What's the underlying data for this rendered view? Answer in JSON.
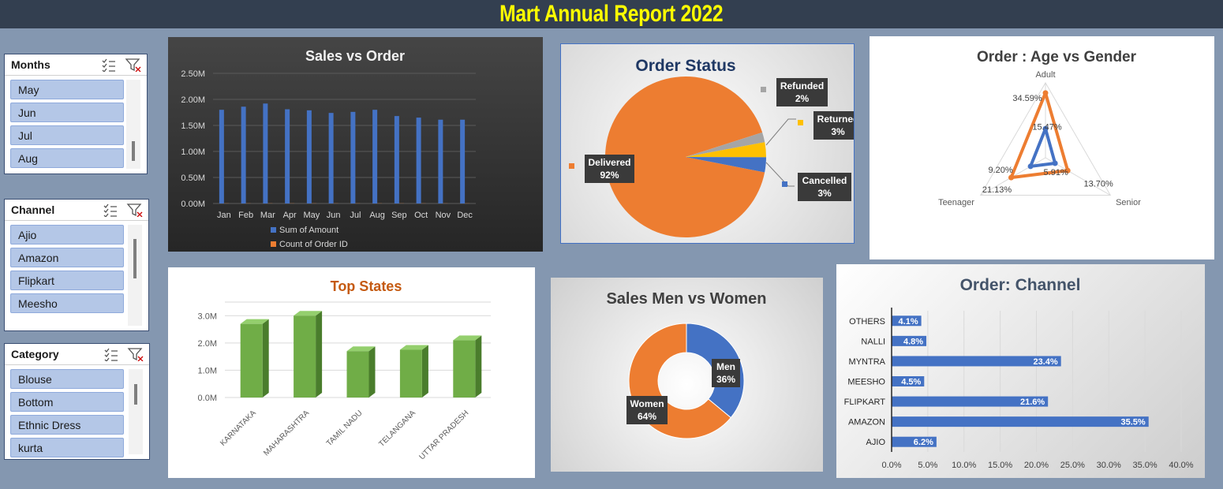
{
  "header": {
    "title": "Mart Annual Report 2022"
  },
  "slicers": [
    {
      "title": "Months",
      "items": [
        "May",
        "Jun",
        "Jul",
        "Aug"
      ]
    },
    {
      "title": "Channel",
      "items": [
        "Ajio",
        "Amazon",
        "Flipkart",
        "Meesho"
      ]
    },
    {
      "title": "Category",
      "items": [
        "Blouse",
        "Bottom",
        "Ethnic Dress",
        "kurta"
      ]
    }
  ],
  "chart_data": [
    {
      "type": "bar",
      "title": "Sales vs Order",
      "categories": [
        "Jan",
        "Feb",
        "Mar",
        "Apr",
        "May",
        "Jun",
        "Jul",
        "Aug",
        "Sep",
        "Oct",
        "Nov",
        "Dec"
      ],
      "series": [
        {
          "name": "Sum of Amount",
          "color": "#4472c4",
          "values": [
            1800000,
            1860000,
            1920000,
            1810000,
            1790000,
            1740000,
            1760000,
            1800000,
            1680000,
            1650000,
            1610000,
            1610000
          ]
        },
        {
          "name": "Count of Order ID",
          "color": "#ed7d31",
          "values": [
            2600,
            2700,
            2750,
            2600,
            2600,
            2550,
            2550,
            2600,
            2450,
            2400,
            2350,
            2350
          ]
        }
      ],
      "ylim": [
        0,
        2500000
      ],
      "yticks": [
        {
          "value": 0,
          "label": "0.00M"
        },
        {
          "value": 500000,
          "label": "0.50M"
        },
        {
          "value": 1000000,
          "label": "1.00M"
        },
        {
          "value": 1500000,
          "label": "1.50M"
        },
        {
          "value": 2000000,
          "label": "2.00M"
        },
        {
          "value": 2500000,
          "label": "2.50M"
        }
      ],
      "grid": true,
      "legend": "bottom"
    },
    {
      "type": "pie",
      "title": "Order Status",
      "categories": [
        "Delivered",
        "Refunded",
        "Returned",
        "Cancelled"
      ],
      "values": [
        92,
        2,
        3,
        3
      ],
      "value_labels": [
        "92%",
        "2%",
        "3%",
        "3%"
      ],
      "colors": [
        "#ed7d31",
        "#a5a5a5",
        "#ffc000",
        "#4472c4"
      ]
    },
    {
      "type": "radar",
      "title": "Order : Age vs Gender",
      "categories": [
        "Adult",
        "Senior",
        "Teenager"
      ],
      "series": [
        {
          "color": "#ed7d31",
          "values": [
            34.59,
            13.7,
            21.13
          ],
          "value_labels": [
            "34.59%",
            "13.70%",
            "21.13%"
          ]
        },
        {
          "color": "#4472c4",
          "values": [
            15.47,
            5.91,
            9.2
          ],
          "value_labels": [
            "15.47%",
            "5.91%",
            "9.20%"
          ]
        }
      ],
      "rlim": [
        0,
        40
      ]
    },
    {
      "type": "bar",
      "title": "Top States",
      "3d": true,
      "categories": [
        "KARNATAKA",
        "MAHARASHTRA",
        "TAMIL NADU",
        "TELANGANA",
        "UTTAR PRADESH"
      ],
      "values": [
        2700000,
        3000000,
        1700000,
        1750000,
        2100000
      ],
      "color": "#70ad47",
      "ylim": [
        0,
        3500000
      ],
      "yticks": [
        {
          "value": 0,
          "label": "0.0M"
        },
        {
          "value": 1000000,
          "label": "1.0M"
        },
        {
          "value": 2000000,
          "label": "2.0M"
        },
        {
          "value": 3000000,
          "label": "3.0M"
        }
      ],
      "grid": true
    },
    {
      "type": "doughnut",
      "title": "Sales Men vs Women",
      "categories": [
        "Men",
        "Women"
      ],
      "values": [
        36,
        64
      ],
      "value_labels": [
        "36%",
        "64%"
      ],
      "colors": [
        "#4472c4",
        "#ed7d31"
      ]
    },
    {
      "type": "barh",
      "title": "Order: Channel",
      "categories": [
        "AJIO",
        "AMAZON",
        "FLIPKART",
        "MEESHO",
        "MYNTRA",
        "NALLI",
        "OTHERS"
      ],
      "values": [
        6.2,
        35.5,
        21.6,
        4.5,
        23.4,
        4.8,
        4.1
      ],
      "value_labels": [
        "6.2%",
        "35.5%",
        "21.6%",
        "4.5%",
        "23.4%",
        "4.8%",
        "4.1%"
      ],
      "color": "#4472c4",
      "xlim": [
        0,
        40
      ],
      "xticks": [
        {
          "value": 0,
          "label": "0.0%"
        },
        {
          "value": 5,
          "label": "5.0%"
        },
        {
          "value": 10,
          "label": "10.0%"
        },
        {
          "value": 15,
          "label": "15.0%"
        },
        {
          "value": 20,
          "label": "20.0%"
        },
        {
          "value": 25,
          "label": "25.0%"
        },
        {
          "value": 30,
          "label": "30.0%"
        },
        {
          "value": 35,
          "label": "35.0%"
        },
        {
          "value": 40,
          "label": "40.0%"
        }
      ],
      "grid": true
    }
  ]
}
